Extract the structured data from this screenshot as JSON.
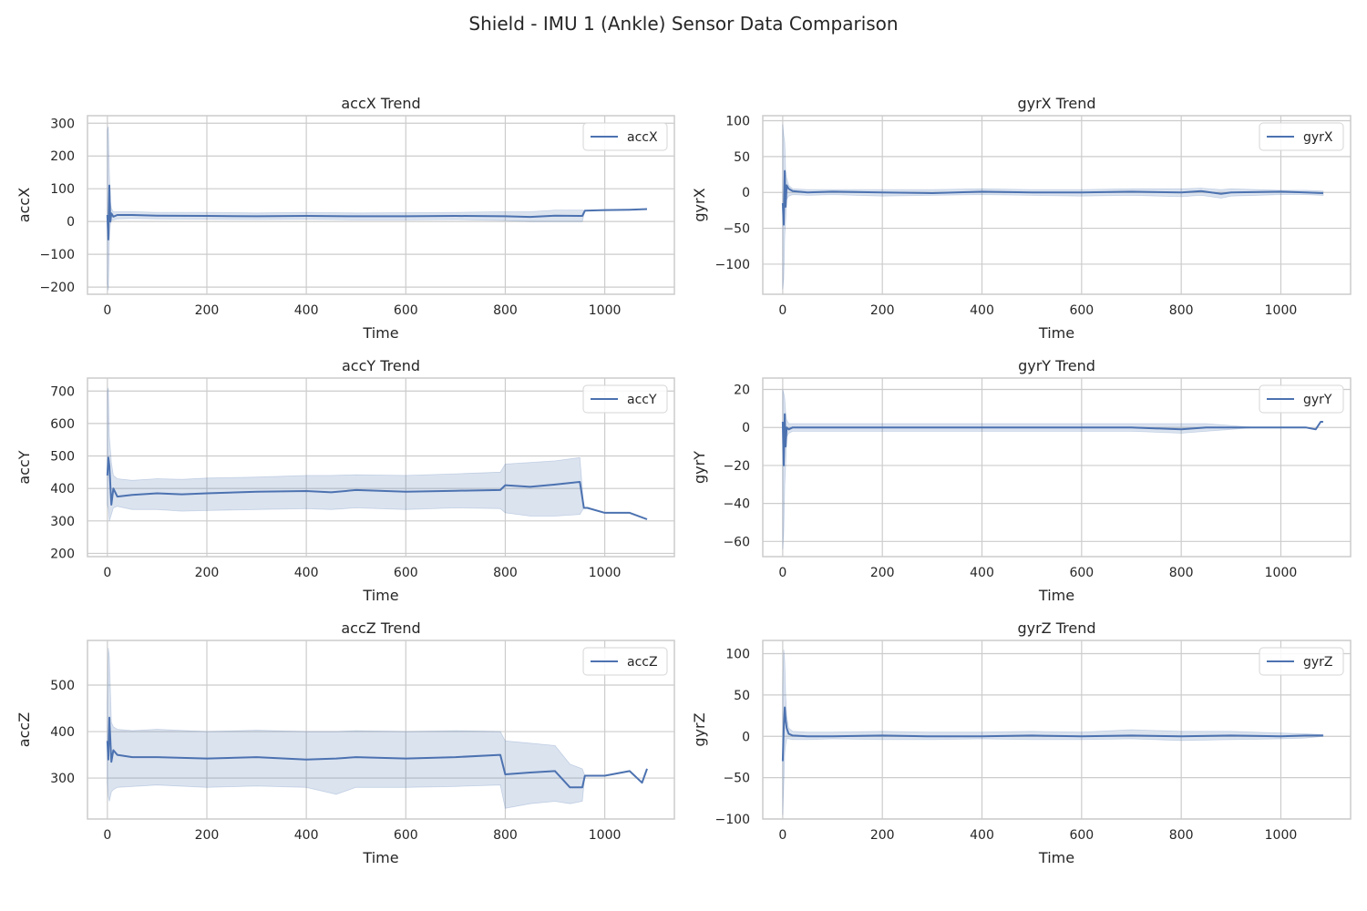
{
  "figure": {
    "title": "Shield - IMU 1 (Ankle) Sensor Data Comparison",
    "colors": {
      "line": "#4c72b0",
      "band": "#4c72b0",
      "grid": "#cccccc",
      "spine": "#cccccc",
      "background": "#ffffff"
    }
  },
  "chart_data": [
    {
      "type": "line",
      "title": "accX Trend",
      "xlabel": "Time",
      "ylabel": "accX",
      "xlim": [
        -40,
        1140
      ],
      "ylim": [
        -222,
        323
      ],
      "xticks": [
        0,
        200,
        400,
        600,
        800,
        1000
      ],
      "xtick_labels": [
        "0",
        "200",
        "400",
        "600",
        "800",
        "1000"
      ],
      "yticks": [
        -200,
        -100,
        0,
        100,
        200,
        300
      ],
      "ytick_labels": [
        "−200",
        "−100",
        "0",
        "100",
        "200",
        "300"
      ],
      "grid": true,
      "legend": "top-right",
      "series": [
        {
          "name": "accX",
          "x": [
            0,
            2,
            4,
            6,
            8,
            12,
            20,
            50,
            100,
            200,
            300,
            400,
            500,
            600,
            700,
            800,
            850,
            900,
            955,
            960,
            1000,
            1050,
            1085
          ],
          "mean": [
            20,
            -55,
            110,
            0,
            25,
            15,
            20,
            20,
            18,
            17,
            16,
            17,
            16,
            16,
            17,
            16,
            14,
            18,
            17,
            33,
            35,
            36,
            38
          ],
          "lower": [
            -190,
            -210,
            -60,
            -10,
            5,
            5,
            8,
            9,
            8,
            7,
            6,
            7,
            5,
            5,
            6,
            3,
            0,
            0,
            0,
            33,
            35,
            36,
            38
          ],
          "upper": [
            280,
            290,
            150,
            60,
            40,
            30,
            30,
            30,
            28,
            28,
            26,
            28,
            26,
            27,
            28,
            30,
            30,
            35,
            35,
            33,
            35,
            36,
            38
          ]
        }
      ]
    },
    {
      "type": "line",
      "title": "gyrX Trend",
      "xlabel": "Time",
      "ylabel": "gyrX",
      "xlim": [
        -40,
        1140
      ],
      "ylim": [
        -142,
        107
      ],
      "xticks": [
        0,
        200,
        400,
        600,
        800,
        1000
      ],
      "xtick_labels": [
        "0",
        "200",
        "400",
        "600",
        "800",
        "1000"
      ],
      "yticks": [
        -100,
        -50,
        0,
        50,
        100
      ],
      "ytick_labels": [
        "−100",
        "−50",
        "0",
        "50",
        "100"
      ],
      "grid": true,
      "legend": "top-right",
      "series": [
        {
          "name": "gyrX",
          "x": [
            0,
            2,
            4,
            6,
            8,
            12,
            20,
            50,
            100,
            200,
            300,
            400,
            500,
            600,
            700,
            800,
            840,
            880,
            900,
            1000,
            1050,
            1085
          ],
          "mean": [
            -15,
            -45,
            30,
            -20,
            10,
            5,
            2,
            0,
            1,
            0,
            -1,
            1,
            0,
            0,
            1,
            0,
            2,
            -2,
            0,
            1,
            0,
            -1
          ],
          "lower": [
            -135,
            -120,
            -60,
            -40,
            -10,
            -5,
            -3,
            -4,
            -3,
            -5,
            -4,
            -3,
            -4,
            -5,
            -4,
            -6,
            -4,
            -8,
            -5,
            -3,
            -3,
            -4
          ],
          "upper": [
            95,
            80,
            70,
            30,
            20,
            10,
            5,
            4,
            4,
            4,
            4,
            5,
            4,
            4,
            5,
            5,
            6,
            4,
            5,
            3,
            3,
            2
          ]
        }
      ]
    },
    {
      "type": "line",
      "title": "accY Trend",
      "xlabel": "Time",
      "ylabel": "accY",
      "xlim": [
        -40,
        1140
      ],
      "ylim": [
        190,
        740
      ],
      "xticks": [
        0,
        200,
        400,
        600,
        800,
        1000
      ],
      "xtick_labels": [
        "0",
        "200",
        "400",
        "600",
        "800",
        "1000"
      ],
      "yticks": [
        200,
        300,
        400,
        500,
        600,
        700
      ],
      "ytick_labels": [
        "200",
        "300",
        "400",
        "500",
        "600",
        "700"
      ],
      "grid": true,
      "legend": "top-right",
      "series": [
        {
          "name": "accY",
          "x": [
            0,
            2,
            4,
            8,
            12,
            20,
            50,
            100,
            150,
            200,
            300,
            400,
            450,
            500,
            600,
            700,
            790,
            800,
            850,
            900,
            950,
            958,
            965,
            1000,
            1050,
            1085
          ],
          "mean": [
            440,
            495,
            470,
            350,
            400,
            375,
            380,
            385,
            382,
            385,
            390,
            392,
            388,
            395,
            390,
            393,
            395,
            410,
            405,
            412,
            420,
            340,
            340,
            325,
            325,
            305
          ],
          "lower": [
            350,
            340,
            300,
            320,
            340,
            345,
            335,
            335,
            330,
            332,
            335,
            338,
            335,
            340,
            335,
            340,
            338,
            325,
            315,
            315,
            320,
            340,
            340,
            325,
            325,
            305
          ],
          "upper": [
            700,
            710,
            560,
            480,
            440,
            430,
            425,
            430,
            428,
            432,
            435,
            440,
            440,
            442,
            440,
            445,
            450,
            475,
            480,
            485,
            495,
            340,
            340,
            325,
            325,
            305
          ]
        }
      ]
    },
    {
      "type": "line",
      "title": "gyrY Trend",
      "xlabel": "Time",
      "ylabel": "gyrY",
      "xlim": [
        -40,
        1140
      ],
      "ylim": [
        -68,
        26
      ],
      "xticks": [
        0,
        200,
        400,
        600,
        800,
        1000
      ],
      "xtick_labels": [
        "0",
        "200",
        "400",
        "600",
        "800",
        "1000"
      ],
      "yticks": [
        -60,
        -40,
        -20,
        0,
        20
      ],
      "ytick_labels": [
        "−60",
        "−40",
        "−20",
        "0",
        "20"
      ],
      "grid": true,
      "legend": "top-right",
      "series": [
        {
          "name": "gyrY",
          "x": [
            0,
            2,
            4,
            6,
            8,
            12,
            20,
            50,
            100,
            200,
            300,
            400,
            500,
            600,
            700,
            800,
            850,
            900,
            950,
            1000,
            1050,
            1070,
            1080,
            1085
          ],
          "mean": [
            3,
            -20,
            7,
            -10,
            0,
            -1,
            0,
            0,
            0,
            0,
            0,
            0,
            0,
            0,
            0,
            -1,
            0,
            0,
            0,
            0,
            0,
            -1,
            3,
            3
          ],
          "lower": [
            -64,
            -55,
            -30,
            -20,
            -5,
            -3,
            -2,
            -2,
            -2,
            -2,
            -2,
            -2,
            -2,
            -2,
            -2,
            -3,
            -2,
            -1,
            0,
            0,
            0,
            -1,
            3,
            3
          ],
          "upper": [
            20,
            18,
            15,
            8,
            4,
            2,
            2,
            2,
            2,
            2,
            2,
            2,
            2,
            2,
            2,
            2,
            2,
            1,
            0,
            0,
            0,
            -1,
            3,
            3
          ]
        }
      ]
    },
    {
      "type": "line",
      "title": "accZ Trend",
      "xlabel": "Time",
      "ylabel": "accZ",
      "xlim": [
        -40,
        1140
      ],
      "ylim": [
        212,
        596
      ],
      "xticks": [
        0,
        200,
        400,
        600,
        800,
        1000
      ],
      "xtick_labels": [
        "0",
        "200",
        "400",
        "600",
        "800",
        "1000"
      ],
      "yticks": [
        300,
        400,
        500
      ],
      "ytick_labels": [
        "300",
        "400",
        "500"
      ],
      "grid": true,
      "legend": "top-right",
      "series": [
        {
          "name": "accZ",
          "x": [
            0,
            2,
            4,
            8,
            12,
            20,
            50,
            100,
            200,
            300,
            400,
            460,
            500,
            600,
            700,
            790,
            800,
            850,
            900,
            930,
            955,
            960,
            1000,
            1050,
            1075,
            1085
          ],
          "mean": [
            380,
            340,
            430,
            335,
            360,
            350,
            345,
            345,
            342,
            345,
            340,
            342,
            345,
            342,
            345,
            350,
            308,
            312,
            315,
            280,
            280,
            305,
            305,
            315,
            290,
            320
          ],
          "lower": [
            290,
            260,
            250,
            270,
            275,
            280,
            282,
            285,
            280,
            283,
            280,
            265,
            280,
            280,
            282,
            285,
            235,
            245,
            250,
            245,
            250,
            305,
            305,
            315,
            290,
            320
          ],
          "upper": [
            460,
            580,
            560,
            420,
            410,
            405,
            402,
            405,
            400,
            403,
            400,
            400,
            402,
            400,
            402,
            400,
            380,
            375,
            370,
            330,
            320,
            305,
            305,
            315,
            290,
            320
          ]
        }
      ]
    },
    {
      "type": "line",
      "title": "gyrZ Trend",
      "xlabel": "Time",
      "ylabel": "gyrZ",
      "xlim": [
        -40,
        1140
      ],
      "ylim": [
        -100,
        116
      ],
      "xticks": [
        0,
        200,
        400,
        600,
        800,
        1000
      ],
      "xtick_labels": [
        "0",
        "200",
        "400",
        "600",
        "800",
        "1000"
      ],
      "yticks": [
        -100,
        -50,
        0,
        50,
        100
      ],
      "ytick_labels": [
        "−100",
        "−50",
        "0",
        "50",
        "100"
      ],
      "grid": true,
      "legend": "top-right",
      "series": [
        {
          "name": "gyrZ",
          "x": [
            0,
            2,
            4,
            6,
            8,
            12,
            20,
            50,
            100,
            200,
            300,
            400,
            500,
            600,
            700,
            800,
            900,
            1000,
            1050,
            1085
          ],
          "mean": [
            -30,
            10,
            35,
            20,
            10,
            3,
            1,
            0,
            0,
            1,
            0,
            0,
            1,
            0,
            1,
            0,
            1,
            0,
            1,
            1
          ],
          "lower": [
            -95,
            -60,
            -20,
            -10,
            -3,
            -3,
            -4,
            -4,
            -3,
            -4,
            -4,
            -3,
            -4,
            -4,
            -3,
            -5,
            -4,
            -3,
            -2,
            0
          ],
          "upper": [
            60,
            105,
            90,
            50,
            25,
            10,
            6,
            5,
            5,
            6,
            5,
            5,
            6,
            5,
            8,
            6,
            6,
            4,
            3,
            2
          ]
        }
      ]
    }
  ]
}
